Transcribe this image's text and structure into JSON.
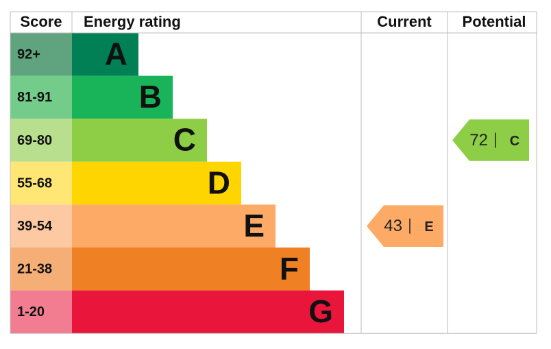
{
  "header": {
    "score": "Score",
    "energy_rating": "Energy rating",
    "current": "Current",
    "potential": "Potential"
  },
  "bands": [
    {
      "score": "92+",
      "letter": "A"
    },
    {
      "score": "81-91",
      "letter": "B"
    },
    {
      "score": "69-80",
      "letter": "C"
    },
    {
      "score": "55-68",
      "letter": "D"
    },
    {
      "score": "39-54",
      "letter": "E"
    },
    {
      "score": "21-38",
      "letter": "F"
    },
    {
      "score": "1-20",
      "letter": "G"
    }
  ],
  "current": {
    "value": 43,
    "letter": "E"
  },
  "potential": {
    "value": 72,
    "letter": "C"
  }
}
